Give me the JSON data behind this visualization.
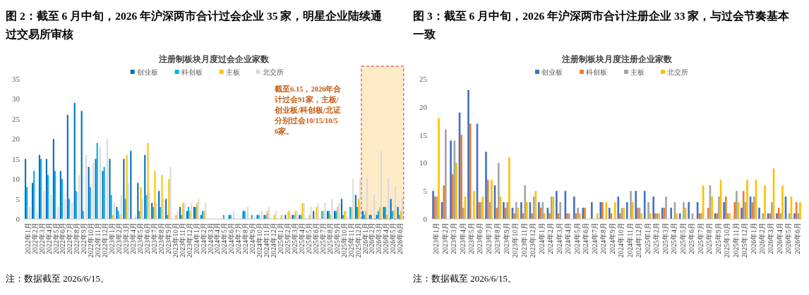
{
  "chart_data": [
    {
      "type": "bar",
      "title": "图 2：截至 6 月中旬，2026 年沪深两市合计过会企业 35 家，明星企业陆续通过交易所审核",
      "subtitle": "注册制板块月度过会企业家数",
      "categories": [
        "2022年1月",
        "2022年2月",
        "2022年3月",
        "2022年4月",
        "2022年5月",
        "2022年6月",
        "2022年7月",
        "2022年8月",
        "2022年9月",
        "2022年10月",
        "2022年11月",
        "2022年12月",
        "2023年1月",
        "2023年2月",
        "2023年3月",
        "2023年4月",
        "2023年5月",
        "2023年6月",
        "2023年7月",
        "2023年8月",
        "2023年9月",
        "2023年10月",
        "2023年11月",
        "2023年12月",
        "2024年1月",
        "2024年2月",
        "2024年3月",
        "2024年4月",
        "2024年5月",
        "2024年6月",
        "2024年7月",
        "2024年8月",
        "2024年9月",
        "2024年10月",
        "2024年11月",
        "2024年12月",
        "2025年1月",
        "2025年2月",
        "2025年3月",
        "2025年4月",
        "2025年5月",
        "2025年6月",
        "2025年7月",
        "2025年8月",
        "2025年9月",
        "2025年10月",
        "2025年11月",
        "2025年12月",
        "2026年1月",
        "2026年2月",
        "2026年3月",
        "2026年4月",
        "2026年5月",
        "2026年6月"
      ],
      "series": [
        {
          "name": "创业板",
          "color": "#0070c0",
          "values": [
            15,
            9,
            16,
            15,
            20,
            12,
            26,
            29,
            27,
            13,
            15,
            12,
            15,
            3,
            15,
            17,
            9,
            16,
            4,
            7,
            5,
            0,
            3,
            2,
            3,
            1,
            0,
            0,
            0,
            1,
            0,
            2,
            0,
            1,
            1,
            0,
            0,
            1,
            1,
            1,
            0,
            2,
            0,
            2,
            2,
            5,
            0,
            6,
            2,
            1,
            1,
            3,
            5,
            3
          ]
        },
        {
          "name": "科创板",
          "color": "#00b0f0",
          "values": [
            8,
            12,
            15,
            11,
            12,
            10,
            5,
            7,
            2,
            8,
            19,
            13,
            6,
            2,
            5,
            0,
            2,
            6,
            3,
            3,
            1,
            0,
            1,
            3,
            3,
            2,
            0,
            0,
            1,
            1,
            0,
            2,
            1,
            1,
            1,
            0,
            0,
            0,
            1,
            1,
            0,
            0,
            2,
            2,
            2,
            1,
            3,
            3,
            1,
            1,
            2,
            3,
            2,
            1
          ]
        },
        {
          "name": "主板",
          "color": "#ffc000",
          "values": [
            null,
            null,
            null,
            null,
            null,
            null,
            null,
            null,
            null,
            null,
            null,
            null,
            1,
            1,
            16,
            0,
            8,
            19,
            12,
            11,
            10,
            1,
            4,
            2,
            4,
            2,
            0,
            0,
            0,
            0,
            0,
            0,
            0,
            0,
            2,
            1,
            1,
            2,
            2,
            4,
            1,
            3,
            2,
            1,
            3,
            2,
            3,
            5,
            2,
            0,
            3,
            1,
            2,
            2
          ]
        },
        {
          "name": "北交所",
          "color": "#d9d9d9",
          "values": [
            3,
            2,
            7,
            6,
            3,
            5,
            4,
            11,
            16,
            14,
            18,
            20,
            4,
            6,
            9,
            1,
            5,
            7,
            4,
            5,
            13,
            2,
            4,
            4,
            5,
            4,
            0,
            0,
            0,
            2,
            0,
            3,
            0,
            2,
            3,
            2,
            0,
            2,
            2,
            4,
            3,
            4,
            4,
            5,
            4,
            2,
            10,
            10,
            10,
            6,
            17,
            10,
            8,
            5
          ]
        }
      ],
      "ylim": [
        0,
        35
      ],
      "yticks": [
        0,
        5,
        10,
        15,
        20,
        25,
        30,
        35
      ],
      "legend": "top",
      "bands": [
        {
          "axis": "x",
          "from": "2026年1月",
          "to": "2026年6月",
          "color": "#fdebc8"
        }
      ],
      "annotations": [
        "截至6.15，2026年合计过会91家，主板/创业板/科创板/北证分别过会10/15/10/56家。",
        "注：数据截至 2026/6/15。"
      ]
    },
    {
      "type": "bar",
      "title": "图 3：截至 6 月中旬，2026 年沪深两市合计注册企业 33 家，与过会节奏基本一致",
      "subtitle": "注册制板块月度注册企业家数",
      "categories": [
        "2023年1月",
        "2023年2月",
        "2023年3月",
        "2023年4月",
        "2023年5月",
        "2023年6月",
        "2023年7月",
        "2023年8月",
        "2023年9月",
        "2023年10月",
        "2023年11月",
        "2023年12月",
        "2024年1月",
        "2024年2月",
        "2024年3月",
        "2024年4月",
        "2024年5月",
        "2024年6月",
        "2024年7月",
        "2024年8月",
        "2024年9月",
        "2024年10月",
        "2024年11月",
        "2024年12月",
        "2025年1月",
        "2025年2月",
        "2025年3月",
        "2025年4月",
        "2025年5月",
        "2025年6月",
        "2025年7月",
        "2025年8月",
        "2025年9月",
        "2025年10月",
        "2025年11月",
        "2025年12月",
        "2026年1月",
        "2026年2月",
        "2026年3月",
        "2026年4月",
        "2026年5月",
        "2026年6月"
      ],
      "series": [
        {
          "name": "创业板",
          "color": "#4472c4",
          "values": [
            5,
            3,
            14,
            19,
            23,
            17,
            12,
            6,
            3,
            2,
            3,
            3,
            3,
            2,
            5,
            5,
            4,
            2,
            3,
            3,
            2,
            4,
            3,
            5,
            5,
            4,
            2,
            2,
            1,
            3,
            3,
            0,
            1,
            3,
            0,
            2,
            4,
            2,
            1,
            1,
            4,
            1
          ]
        },
        {
          "name": "科创板",
          "color": "#ed7d31",
          "values": [
            4,
            6,
            8,
            15,
            17,
            3,
            7,
            2,
            2,
            1,
            1,
            1,
            2,
            1,
            1,
            1,
            1,
            2,
            0,
            3,
            1,
            1,
            0,
            2,
            0,
            1,
            2,
            0,
            0,
            0,
            1,
            2,
            1,
            4,
            3,
            5,
            3,
            0,
            1,
            2,
            0,
            3
          ]
        },
        {
          "name": "主板",
          "color": "#a5a5a5",
          "values": [
            4,
            16,
            14,
            2,
            0,
            3,
            3,
            10,
            3,
            3,
            6,
            4,
            3,
            4,
            3,
            1,
            2,
            0,
            0,
            0,
            0,
            2,
            5,
            2,
            3,
            1,
            4,
            3,
            3,
            1,
            1,
            6,
            4,
            1,
            5,
            3,
            4,
            1,
            3,
            1,
            1,
            1
          ]
        },
        {
          "name": "北交所",
          "color": "#ffc000",
          "values": [
            18,
            0,
            10,
            4,
            5,
            4,
            7,
            4,
            11,
            2,
            3,
            5,
            1,
            4,
            0,
            0,
            1,
            0,
            1,
            3,
            3,
            2,
            3,
            1,
            1,
            1,
            0,
            1,
            2,
            0,
            6,
            4,
            7,
            1,
            3,
            7,
            7,
            6,
            9,
            6,
            4,
            3
          ]
        }
      ],
      "ylim": [
        0,
        25
      ],
      "yticks": [
        0,
        5,
        10,
        15,
        20,
        25
      ],
      "legend": "top",
      "annotations": [
        "注：数据截至 2026/6/15。"
      ]
    }
  ]
}
